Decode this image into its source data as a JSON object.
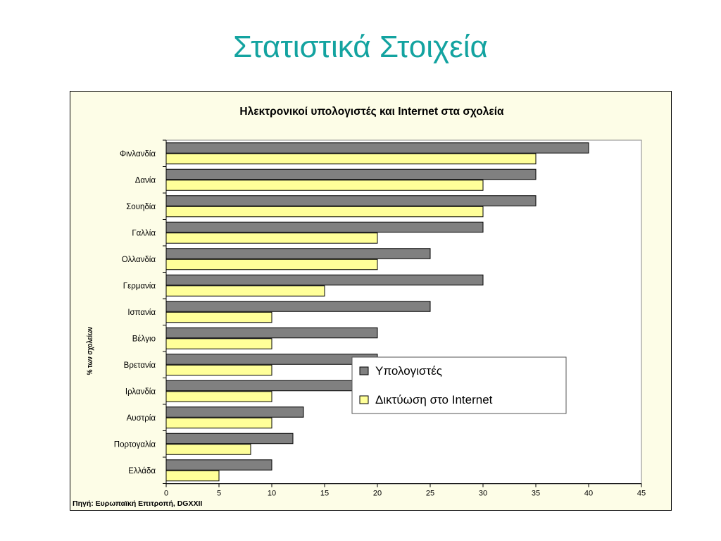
{
  "slide": {
    "title": "Στατιστικά Στοιχεία"
  },
  "chart_data": {
    "type": "bar",
    "orientation": "horizontal",
    "title": "Ηλεκτρονικοί υπολογιστές και Internet στα σχολεία",
    "ylabel": "% των σχολείων",
    "xlabel": "",
    "source": "Πηγή: Ευρωπαϊκή Επιτροπή, DGXXII",
    "categories": [
      "Φινλανδία",
      "Δανία",
      "Σουηδία",
      "Γαλλία",
      "Ολλανδία",
      "Γερμανία",
      "Ισπανία",
      "Βέλγιο",
      "Βρετανία",
      "Ιρλανδία",
      "Αυστρία",
      "Πορτογαλία",
      "Ελλάδα"
    ],
    "series": [
      {
        "name": "Υπολογιστές",
        "color": "#808080",
        "values": [
          40,
          35,
          35,
          30,
          25,
          30,
          25,
          20,
          20,
          19,
          13,
          12,
          10
        ]
      },
      {
        "name": "Δικτύωση στο Internet",
        "color": "#ffff99",
        "values": [
          35,
          30,
          30,
          20,
          20,
          15,
          10,
          10,
          10,
          10,
          10,
          8,
          5
        ]
      }
    ],
    "xlim": [
      0,
      45
    ],
    "xticks": [
      "0",
      "5",
      "10",
      "15",
      "20",
      "25",
      "30",
      "35",
      "40",
      "45"
    ],
    "grid": false,
    "legend_position": "right-lower"
  }
}
